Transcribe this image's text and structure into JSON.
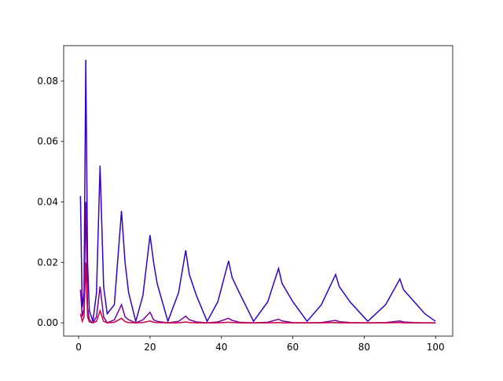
{
  "chart_data": {
    "type": "line",
    "x": [
      0.5,
      1,
      1.5,
      2,
      2.5,
      3,
      4,
      5,
      6,
      7,
      8,
      10,
      12,
      13,
      14,
      16,
      18,
      20,
      21,
      22,
      25,
      28,
      30,
      31,
      33,
      36,
      39,
      42,
      43,
      45,
      49,
      53,
      56,
      57,
      60,
      64,
      68,
      72,
      73,
      76,
      81,
      86,
      90,
      91,
      94,
      97,
      100
    ],
    "series": [
      {
        "color": "#3300cc",
        "values": [
          0.042,
          0.005,
          0.01,
          0.087,
          0.02,
          0.004,
          0.0005,
          0.01,
          0.052,
          0.012,
          0.003,
          0.006,
          0.037,
          0.02,
          0.01,
          0.0005,
          0.009,
          0.029,
          0.02,
          0.013,
          0.0005,
          0.01,
          0.024,
          0.016,
          0.009,
          0.0005,
          0.007,
          0.0205,
          0.015,
          0.01,
          0.0005,
          0.007,
          0.018,
          0.013,
          0.007,
          0.0005,
          0.006,
          0.016,
          0.012,
          0.007,
          0.0005,
          0.006,
          0.0145,
          0.011,
          0.007,
          0.003,
          0.0005
        ]
      },
      {
        "color": "#770099",
        "values": [
          0.011,
          0.002,
          0.005,
          0.04,
          0.005,
          0.001,
          0,
          0.002,
          0.012,
          0.002,
          0,
          0.001,
          0.006,
          0.002,
          0.001,
          0,
          0.001,
          0.0035,
          0.001,
          0.0005,
          0,
          0.0005,
          0.0022,
          0.001,
          0.0003,
          0,
          0.0003,
          0.0015,
          0.0008,
          0.0002,
          0,
          0.0002,
          0.0012,
          0.0006,
          0.0001,
          0,
          0.0001,
          0.0008,
          0.0004,
          0.0001,
          0,
          0.0001,
          0.0006,
          0.0003,
          0.0001,
          0,
          0
        ]
      },
      {
        "color": "#cc0044",
        "values": [
          0.003,
          0.0005,
          0.002,
          0.02,
          0.002,
          0.0003,
          0,
          0.0005,
          0.004,
          0.0005,
          0,
          0.0002,
          0.0015,
          0.0004,
          0.0001,
          0,
          0.0001,
          0.0006,
          0.0002,
          0.0001,
          0,
          0,
          0.0003,
          0.0001,
          0,
          0,
          0,
          0.0002,
          0.0001,
          0,
          0,
          0,
          0.0001,
          0,
          0,
          0,
          0,
          0.0001,
          0,
          0,
          0,
          0,
          0.0001,
          0,
          0,
          0,
          0
        ]
      }
    ],
    "xlim": [
      -4.2,
      104.8
    ],
    "ylim": [
      -0.0044,
      0.0917
    ],
    "xticks": [
      0,
      20,
      40,
      60,
      80,
      100
    ],
    "yticks": [
      {
        "value": 0,
        "label": "0.00"
      },
      {
        "value": 0.02,
        "label": "0.02"
      },
      {
        "value": 0.04,
        "label": "0.04"
      },
      {
        "value": 0.06,
        "label": "0.06"
      },
      {
        "value": 0.08,
        "label": "0.08"
      }
    ]
  }
}
